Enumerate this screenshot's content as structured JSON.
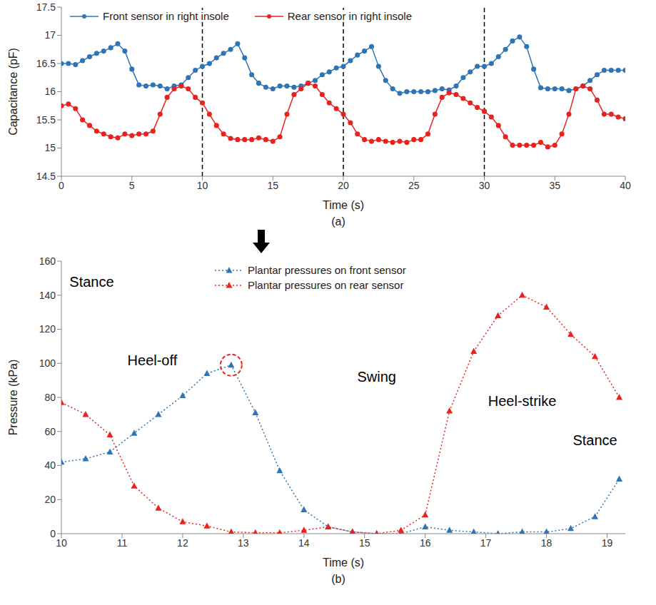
{
  "chart_data": [
    {
      "type": "line",
      "panel": "(a)",
      "x_label": "Time (s)",
      "y_label": "Capacitance (pF)",
      "legend": "upper left",
      "xlim": [
        0,
        40
      ],
      "xticks": [
        0,
        5,
        10,
        15,
        20,
        25,
        30,
        35,
        40
      ],
      "ylim": [
        14.5,
        17.5
      ],
      "yticks": [
        14.5,
        15,
        15.5,
        16,
        16.5,
        17,
        17.5
      ],
      "reference_lines": [
        10,
        20,
        30
      ],
      "x": [
        0,
        0.5,
        1,
        1.5,
        2,
        2.5,
        3,
        3.5,
        4,
        4.5,
        5,
        5.5,
        6,
        6.5,
        7,
        7.5,
        8,
        8.5,
        9,
        9.5,
        10,
        10.5,
        11,
        11.5,
        12,
        12.5,
        13,
        13.5,
        14,
        14.5,
        15,
        15.5,
        16,
        16.5,
        17,
        17.5,
        18,
        18.5,
        19,
        19.5,
        20,
        20.5,
        21,
        21.5,
        22,
        22.5,
        23,
        23.5,
        24,
        24.5,
        25,
        25.5,
        26,
        26.5,
        27,
        27.5,
        28,
        28.5,
        29,
        29.5,
        30,
        30.5,
        31,
        31.5,
        32,
        32.5,
        33,
        33.5,
        34,
        34.5,
        35,
        35.5,
        36,
        36.5,
        37,
        37.5,
        38,
        38.5,
        39,
        39.5,
        40
      ],
      "series": [
        {
          "name": "Front sensor in right insole",
          "color": "#2e75b6",
          "marker": "circle",
          "line_style": "solid",
          "values": [
            16.5,
            16.5,
            16.48,
            16.55,
            16.62,
            16.68,
            16.72,
            16.78,
            16.85,
            16.72,
            16.4,
            16.12,
            16.1,
            16.12,
            16.1,
            16.05,
            16.1,
            16.12,
            16.25,
            16.38,
            16.45,
            16.5,
            16.6,
            16.68,
            16.75,
            16.85,
            16.6,
            16.3,
            16.15,
            16.08,
            16.05,
            16.1,
            16.1,
            16.08,
            16.1,
            16.15,
            16.2,
            16.3,
            16.35,
            16.42,
            16.45,
            16.55,
            16.65,
            16.72,
            16.8,
            16.45,
            16.2,
            16.05,
            15.97,
            16.0,
            16.0,
            16.0,
            16.0,
            16.02,
            16.05,
            16.03,
            16.1,
            16.25,
            16.35,
            16.45,
            16.45,
            16.5,
            16.62,
            16.75,
            16.9,
            16.97,
            16.8,
            16.4,
            16.07,
            16.05,
            16.05,
            16.05,
            16.02,
            16.05,
            16.1,
            16.2,
            16.3,
            16.38,
            16.38,
            16.38,
            16.38
          ]
        },
        {
          "name": "Rear sensor in right insole",
          "color": "#e8231f",
          "marker": "circle",
          "line_style": "solid",
          "values": [
            15.75,
            15.78,
            15.7,
            15.5,
            15.4,
            15.3,
            15.25,
            15.2,
            15.18,
            15.25,
            15.22,
            15.25,
            15.25,
            15.3,
            15.6,
            15.9,
            16.05,
            16.1,
            16.05,
            15.9,
            15.8,
            15.6,
            15.4,
            15.25,
            15.17,
            15.15,
            15.15,
            15.15,
            15.18,
            15.15,
            15.12,
            15.2,
            15.6,
            15.95,
            16.05,
            16.15,
            16.1,
            15.95,
            15.8,
            15.7,
            15.6,
            15.45,
            15.25,
            15.15,
            15.12,
            15.15,
            15.12,
            15.1,
            15.12,
            15.1,
            15.15,
            15.15,
            15.25,
            15.6,
            15.9,
            15.98,
            15.95,
            15.88,
            15.8,
            15.72,
            15.65,
            15.55,
            15.4,
            15.2,
            15.05,
            15.05,
            15.05,
            15.05,
            15.1,
            15.02,
            15.05,
            15.25,
            15.6,
            16.05,
            16.1,
            16.05,
            15.85,
            15.6,
            15.6,
            15.55,
            15.52
          ]
        }
      ]
    },
    {
      "type": "line",
      "panel": "(b)",
      "x_label": "Time (s)",
      "y_label": "Pressure (kPa)",
      "legend": "upper center",
      "xlim": [
        10,
        19.3
      ],
      "xticks": [
        10,
        11,
        12,
        13,
        14,
        15,
        16,
        17,
        18,
        19
      ],
      "ylim": [
        0,
        160
      ],
      "yticks": [
        0,
        20,
        40,
        60,
        80,
        100,
        120,
        140,
        160
      ],
      "x": [
        10,
        10.4,
        10.8,
        11.2,
        11.6,
        12,
        12.4,
        12.8,
        13.2,
        13.6,
        14,
        14.4,
        14.8,
        15.2,
        15.6,
        16,
        16.4,
        16.8,
        17.2,
        17.6,
        18,
        18.4,
        18.8,
        19.2
      ],
      "series": [
        {
          "name": "Plantar pressures on front sensor",
          "color": "#2e75b6",
          "marker": "triangle",
          "line_style": "dotted",
          "values": [
            42,
            44,
            48,
            59,
            70,
            81,
            94,
            99,
            71,
            37,
            14,
            4,
            1,
            0,
            0,
            4,
            2,
            1,
            0,
            1,
            1,
            3,
            10,
            32
          ]
        },
        {
          "name": "Plantar pressures on rear sensor",
          "color": "#e8231f",
          "marker": "triangle",
          "line_style": "dotted",
          "values": [
            77,
            70,
            58,
            28,
            15,
            7,
            4.5,
            1,
            0.5,
            0.5,
            2,
            4,
            1,
            0,
            2,
            11,
            72,
            107,
            128,
            140,
            133,
            117,
            104,
            80
          ]
        }
      ],
      "annotations": [
        {
          "text": "Stance",
          "x": 10.5,
          "y": 148
        },
        {
          "text": "Heel-off",
          "x": 11.5,
          "y": 102
        },
        {
          "text": "Swing",
          "x": 15.2,
          "y": 92
        },
        {
          "text": "Heel-strike",
          "x": 17.6,
          "y": 78
        },
        {
          "text": "Stance",
          "x": 18.8,
          "y": 55
        }
      ]
    }
  ]
}
